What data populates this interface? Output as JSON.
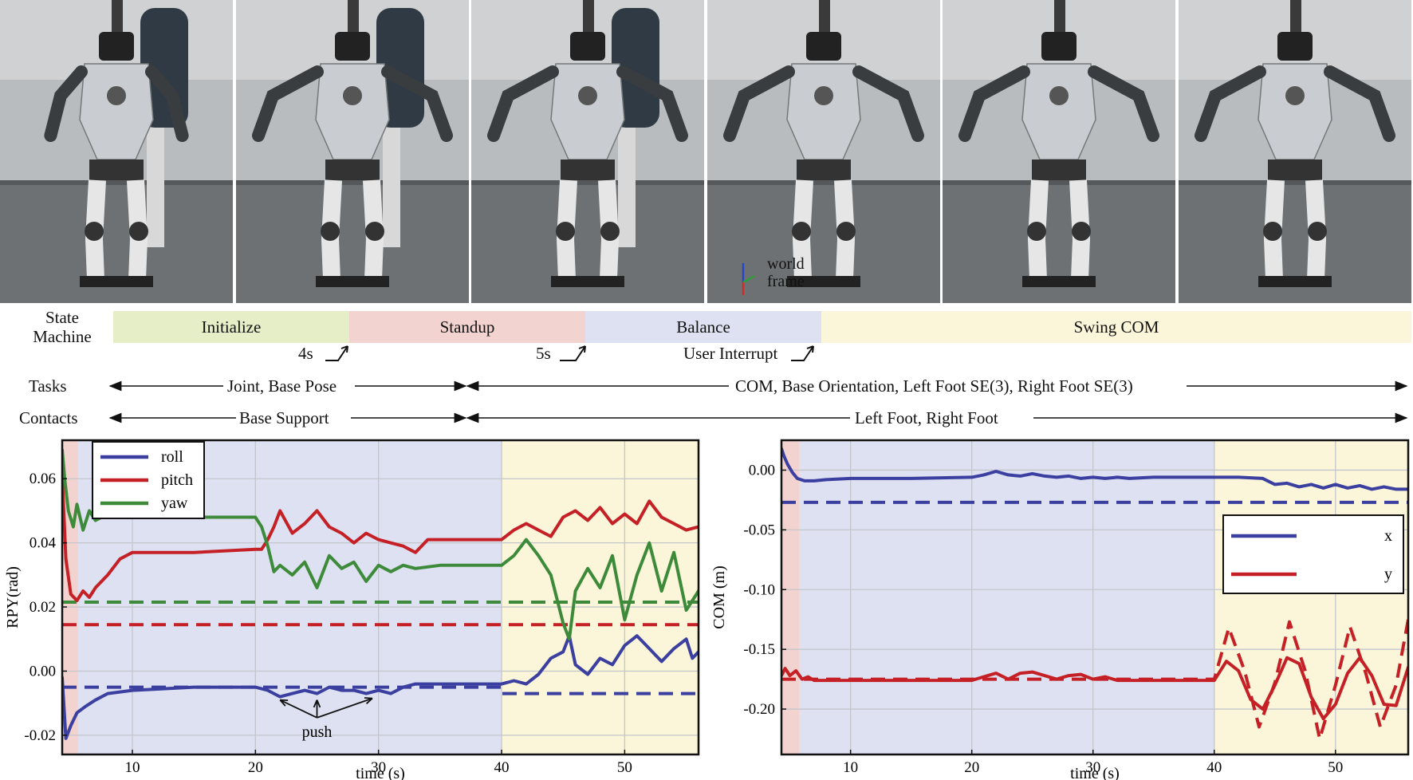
{
  "photo_annotation": {
    "line1": "world",
    "line2": "frame"
  },
  "state_machine": {
    "label_line1": "State",
    "label_line2": "Machine",
    "states": [
      {
        "name": "Initialize",
        "color": "#e6eec8"
      },
      {
        "name": "Standup",
        "color": "#f3d3cf"
      },
      {
        "name": "Balance",
        "color": "#dde1f1"
      },
      {
        "name": "Swing COM",
        "color": "#fbf5d9"
      }
    ],
    "transitions": [
      "4s",
      "5s",
      "User Interrupt"
    ]
  },
  "tasks": {
    "label": "Tasks",
    "left": "Joint, Base Pose",
    "right": "COM, Base Orientation, Left Foot SE(3), Right Foot SE(3)"
  },
  "contacts": {
    "label": "Contacts",
    "left": "Base Support",
    "right": "Left Foot, Right Foot"
  },
  "phase_colors": {
    "standup": "#f3d3cf",
    "balance": "#dde1f1",
    "swing": "#fbf5d9"
  },
  "chart_data": [
    {
      "type": "line",
      "xlabel": "time (s)",
      "ylabel": "RPY(rad)",
      "xlim": [
        4.3,
        56
      ],
      "ylim": [
        -0.026,
        0.072
      ],
      "xticks": [
        10,
        20,
        30,
        40,
        50
      ],
      "yticks": [
        -0.02,
        0.0,
        0.02,
        0.04,
        0.06
      ],
      "ytick_labels": [
        "-0.02",
        "0.00",
        "0.02",
        "0.04",
        "0.06"
      ],
      "grid": true,
      "legend_position": "top-left",
      "phases": [
        {
          "state": "Standup",
          "x": [
            4.3,
            5.6
          ]
        },
        {
          "state": "Balance",
          "x": [
            5.6,
            40
          ]
        },
        {
          "state": "Swing COM",
          "x": [
            40,
            56
          ]
        }
      ],
      "annotation": {
        "text": "push",
        "targets": [
          [
            22,
            -0.009
          ],
          [
            25,
            -0.009
          ],
          [
            29.5,
            -0.0085
          ]
        ],
        "anchor": [
          25,
          -0.019
        ]
      },
      "series": [
        {
          "name": "roll",
          "color": "#3b3fa0",
          "x": [
            4.3,
            4.6,
            5.0,
            5.5,
            6.2,
            7.0,
            8.0,
            10,
            15,
            20,
            21,
            22,
            23,
            24,
            25,
            26,
            27,
            28,
            29,
            30,
            31,
            32,
            33,
            35,
            38,
            40,
            41,
            42,
            43,
            44,
            45,
            45.5,
            46,
            47,
            48,
            49,
            50,
            51,
            52,
            53,
            54,
            55,
            55.5,
            56
          ],
          "y": [
            -0.002,
            -0.021,
            -0.017,
            -0.013,
            -0.011,
            -0.009,
            -0.007,
            -0.006,
            -0.005,
            -0.005,
            -0.006,
            -0.008,
            -0.007,
            -0.006,
            -0.007,
            -0.005,
            -0.006,
            -0.006,
            -0.007,
            -0.006,
            -0.007,
            -0.005,
            -0.004,
            -0.004,
            -0.004,
            -0.004,
            -0.003,
            -0.004,
            -0.001,
            0.004,
            0.006,
            0.011,
            0.002,
            -0.001,
            0.004,
            0.002,
            0.008,
            0.011,
            0.007,
            0.003,
            0.007,
            0.01,
            0.004,
            0.006
          ]
        },
        {
          "name": "pitch",
          "color": "#c42026",
          "x": [
            4.3,
            4.6,
            5.0,
            5.5,
            6.0,
            6.5,
            7.0,
            8.0,
            9.0,
            10,
            15,
            20,
            20.5,
            21,
            21.5,
            22,
            23,
            24,
            25,
            26,
            27,
            28,
            29,
            30,
            31,
            32,
            33,
            34,
            35,
            38,
            40,
            41,
            42,
            43,
            44,
            45,
            46,
            47,
            48,
            49,
            50,
            51,
            52,
            53,
            54,
            55,
            56
          ],
          "y": [
            0.061,
            0.035,
            0.024,
            0.022,
            0.025,
            0.023,
            0.026,
            0.03,
            0.035,
            0.037,
            0.037,
            0.038,
            0.038,
            0.041,
            0.045,
            0.05,
            0.043,
            0.046,
            0.05,
            0.045,
            0.043,
            0.04,
            0.043,
            0.041,
            0.04,
            0.039,
            0.037,
            0.041,
            0.041,
            0.041,
            0.041,
            0.044,
            0.046,
            0.044,
            0.042,
            0.048,
            0.05,
            0.047,
            0.051,
            0.046,
            0.049,
            0.046,
            0.053,
            0.048,
            0.046,
            0.044,
            0.045
          ]
        },
        {
          "name": "yaw",
          "color": "#3d8b3a",
          "x": [
            4.3,
            4.5,
            4.8,
            5.2,
            5.5,
            6.0,
            6.5,
            7.0,
            8.0,
            10,
            15,
            20,
            20.5,
            21,
            21.5,
            22,
            23,
            24,
            25,
            26,
            27,
            28,
            29,
            30,
            31,
            32,
            33,
            35,
            38,
            40,
            41,
            42,
            43,
            44,
            45,
            45.5,
            46,
            47,
            48,
            49,
            50,
            51,
            52,
            53,
            54,
            55,
            56
          ],
          "y": [
            0.069,
            0.06,
            0.05,
            0.045,
            0.052,
            0.044,
            0.05,
            0.047,
            0.049,
            0.048,
            0.048,
            0.048,
            0.045,
            0.039,
            0.031,
            0.033,
            0.03,
            0.034,
            0.026,
            0.036,
            0.032,
            0.034,
            0.028,
            0.033,
            0.031,
            0.033,
            0.032,
            0.033,
            0.033,
            0.033,
            0.036,
            0.041,
            0.036,
            0.03,
            0.015,
            0.01,
            0.025,
            0.032,
            0.026,
            0.036,
            0.016,
            0.03,
            0.04,
            0.025,
            0.037,
            0.019,
            0.025
          ]
        },
        {
          "name": "roll reference",
          "color": "#3b3fa0",
          "dashed": true,
          "x": [
            4.3,
            40,
            40,
            56
          ],
          "y": [
            -0.005,
            -0.005,
            -0.007,
            -0.007
          ]
        },
        {
          "name": "pitch reference",
          "color": "#c42026",
          "dashed": true,
          "x": [
            4.3,
            56
          ],
          "y": [
            0.0145,
            0.0145
          ]
        },
        {
          "name": "yaw reference",
          "color": "#3d8b3a",
          "dashed": true,
          "x": [
            4.3,
            56
          ],
          "y": [
            0.0215,
            0.0215
          ]
        }
      ]
    },
    {
      "type": "line",
      "xlabel": "time (s)",
      "ylabel": "COM (m)",
      "xlim": [
        4.3,
        56
      ],
      "ylim": [
        -0.238,
        0.025
      ],
      "xticks": [
        10,
        20,
        30,
        40,
        50
      ],
      "yticks": [
        0.0,
        -0.05,
        -0.1,
        -0.15,
        -0.2
      ],
      "ytick_labels": [
        "0.00",
        "-0.05",
        "-0.10",
        "-0.15",
        "-0.20"
      ],
      "grid": true,
      "legend_position": "middle-right",
      "phases": [
        {
          "state": "Standup",
          "x": [
            4.3,
            5.8
          ]
        },
        {
          "state": "Balance",
          "x": [
            5.8,
            40
          ]
        },
        {
          "state": "Swing COM",
          "x": [
            40,
            56
          ]
        }
      ],
      "series": [
        {
          "name": "x",
          "color": "#3b3fa0",
          "x": [
            4.3,
            4.5,
            4.8,
            5.2,
            5.6,
            6.2,
            7.0,
            8.0,
            10,
            15,
            20,
            21,
            22,
            23,
            24,
            25,
            26,
            27,
            28,
            29,
            30,
            31,
            32,
            33,
            35,
            38,
            40,
            42,
            44,
            45,
            46,
            47,
            48,
            49,
            50,
            51,
            52,
            53,
            54,
            55,
            56
          ],
          "y": [
            0.018,
            0.012,
            0.005,
            -0.002,
            -0.007,
            -0.009,
            -0.009,
            -0.008,
            -0.007,
            -0.007,
            -0.006,
            -0.004,
            -0.001,
            -0.004,
            -0.005,
            -0.003,
            -0.005,
            -0.006,
            -0.005,
            -0.007,
            -0.006,
            -0.007,
            -0.006,
            -0.007,
            -0.006,
            -0.006,
            -0.006,
            -0.006,
            -0.007,
            -0.012,
            -0.011,
            -0.014,
            -0.012,
            -0.015,
            -0.012,
            -0.015,
            -0.013,
            -0.016,
            -0.014,
            -0.016,
            -0.016
          ]
        },
        {
          "name": "y",
          "color": "#c42026",
          "x": [
            4.3,
            4.6,
            5.0,
            5.5,
            6.0,
            6.5,
            7,
            10,
            15,
            20,
            21,
            22,
            23,
            24,
            25,
            26,
            27,
            28,
            29,
            30,
            31,
            32,
            33,
            35,
            38,
            40,
            40.5,
            41,
            42,
            43,
            44,
            45,
            46,
            47,
            48,
            49,
            50,
            51,
            52,
            53,
            54,
            55,
            56
          ],
          "y": [
            -0.172,
            -0.166,
            -0.172,
            -0.168,
            -0.175,
            -0.173,
            -0.176,
            -0.176,
            -0.176,
            -0.176,
            -0.173,
            -0.17,
            -0.175,
            -0.17,
            -0.169,
            -0.172,
            -0.175,
            -0.172,
            -0.171,
            -0.175,
            -0.173,
            -0.176,
            -0.176,
            -0.176,
            -0.176,
            -0.176,
            -0.168,
            -0.16,
            -0.168,
            -0.192,
            -0.2,
            -0.18,
            -0.157,
            -0.162,
            -0.19,
            -0.208,
            -0.196,
            -0.17,
            -0.157,
            -0.172,
            -0.196,
            -0.197,
            -0.165
          ]
        },
        {
          "name": "x reference",
          "color": "#3b3fa0",
          "dashed": true,
          "x": [
            4.3,
            56
          ],
          "y": [
            -0.027,
            -0.027
          ]
        },
        {
          "name": "y reference",
          "color": "#c42026",
          "dashed": true,
          "x": [
            4.3,
            40,
            41.2,
            42.5,
            43.7,
            45,
            46.2,
            47.5,
            48.7,
            50,
            51.2,
            52.5,
            53.7,
            55,
            56
          ],
          "y": [
            -0.175,
            -0.175,
            -0.132,
            -0.168,
            -0.215,
            -0.178,
            -0.127,
            -0.168,
            -0.225,
            -0.18,
            -0.131,
            -0.17,
            -0.215,
            -0.18,
            -0.125
          ]
        }
      ]
    }
  ]
}
